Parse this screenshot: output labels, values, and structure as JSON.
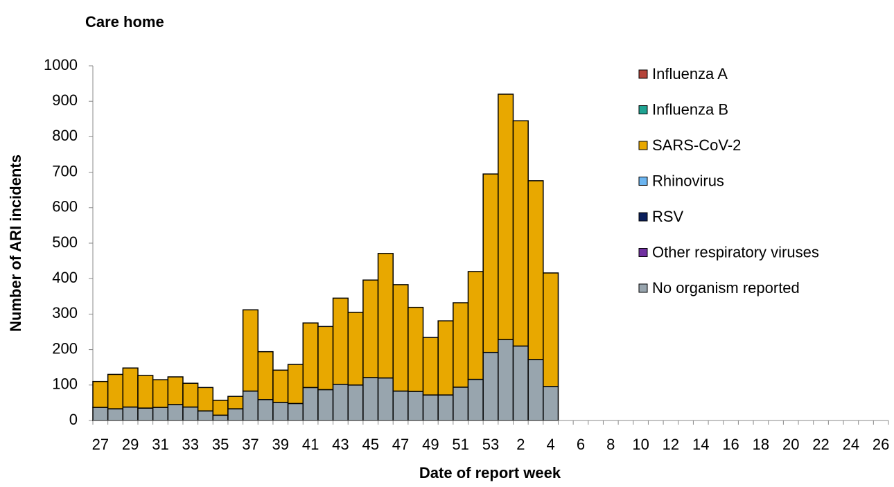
{
  "chart_data": {
    "type": "stacked-bar",
    "title": "Care home",
    "x_label": "Date of report week",
    "y_label": "Number of ARI incidents",
    "categories": [
      "27",
      null,
      "29",
      null,
      "31",
      null,
      "33",
      null,
      "35",
      null,
      "37",
      null,
      "39",
      null,
      "41",
      null,
      "43",
      null,
      "45",
      null,
      "47",
      null,
      "49",
      null,
      "51",
      null,
      "53",
      null,
      "2",
      null,
      "4",
      null,
      "6",
      null,
      "8",
      null,
      "10",
      null,
      "12",
      null,
      "14",
      null,
      "16",
      null,
      "18",
      null,
      "20",
      null,
      "22",
      null,
      "24",
      null,
      "26"
    ],
    "ylim": [
      0,
      1000
    ],
    "yticks": [
      0,
      100,
      200,
      300,
      400,
      500,
      600,
      700,
      800,
      900,
      1000
    ],
    "legend": "right",
    "series": [
      {
        "name": "Influenza A",
        "color": "#b5443a",
        "values": [
          0,
          0,
          0,
          0,
          0,
          0,
          0,
          0,
          0,
          0,
          0,
          0,
          0,
          0,
          0,
          0,
          0,
          0,
          0,
          0,
          0,
          0,
          0,
          0,
          0,
          0,
          0,
          0,
          0,
          0,
          0,
          null,
          null,
          null,
          null,
          null,
          null,
          null,
          null,
          null,
          null,
          null,
          null,
          null,
          null,
          null,
          null,
          null,
          null,
          null,
          null,
          null,
          null
        ]
      },
      {
        "name": "Influenza B",
        "color": "#1fa392",
        "values": [
          0,
          0,
          0,
          0,
          0,
          0,
          0,
          0,
          0,
          0,
          0,
          0,
          0,
          0,
          0,
          0,
          0,
          0,
          0,
          0,
          0,
          0,
          0,
          0,
          0,
          0,
          0,
          0,
          0,
          0,
          0,
          null,
          null,
          null,
          null,
          null,
          null,
          null,
          null,
          null,
          null,
          null,
          null,
          null,
          null,
          null,
          null,
          null,
          null,
          null,
          null,
          null,
          null
        ]
      },
      {
        "name": "SARS-CoV-2",
        "color": "#e8a800",
        "values": [
          73,
          97,
          110,
          92,
          78,
          78,
          67,
          66,
          42,
          35,
          229,
          135,
          91,
          110,
          182,
          178,
          243,
          205,
          275,
          351,
          300,
          237,
          162,
          209,
          238,
          304,
          503,
          692,
          635,
          504,
          320,
          null,
          null,
          null,
          null,
          null,
          null,
          null,
          null,
          null,
          null,
          null,
          null,
          null,
          null,
          null,
          null,
          null,
          null,
          null,
          null,
          null,
          null
        ]
      },
      {
        "name": "Rhinovirus",
        "color": "#6cb5f0",
        "values": [
          0,
          0,
          0,
          0,
          0,
          0,
          0,
          0,
          0,
          0,
          0,
          0,
          0,
          0,
          0,
          0,
          0,
          0,
          0,
          0,
          0,
          0,
          0,
          0,
          0,
          0,
          0,
          0,
          0,
          0,
          0,
          null,
          null,
          null,
          null,
          null,
          null,
          null,
          null,
          null,
          null,
          null,
          null,
          null,
          null,
          null,
          null,
          null,
          null,
          null,
          null,
          null,
          null
        ]
      },
      {
        "name": "RSV",
        "color": "#0a1f5c",
        "values": [
          0,
          0,
          0,
          0,
          0,
          0,
          0,
          0,
          0,
          0,
          0,
          0,
          0,
          0,
          0,
          0,
          0,
          0,
          0,
          0,
          0,
          0,
          0,
          0,
          0,
          0,
          0,
          0,
          0,
          0,
          0,
          null,
          null,
          null,
          null,
          null,
          null,
          null,
          null,
          null,
          null,
          null,
          null,
          null,
          null,
          null,
          null,
          null,
          null,
          null,
          null,
          null,
          null
        ]
      },
      {
        "name": "Other respiratory viruses",
        "color": "#7030a0",
        "values": [
          0,
          0,
          0,
          0,
          0,
          0,
          0,
          0,
          0,
          0,
          0,
          0,
          0,
          0,
          0,
          0,
          0,
          0,
          0,
          0,
          0,
          0,
          0,
          0,
          0,
          0,
          0,
          0,
          0,
          0,
          0,
          null,
          null,
          null,
          null,
          null,
          null,
          null,
          null,
          null,
          null,
          null,
          null,
          null,
          null,
          null,
          null,
          null,
          null,
          null,
          null,
          null,
          null
        ]
      },
      {
        "name": "No organism reported",
        "color": "#98a5ae",
        "values": [
          37,
          33,
          38,
          35,
          37,
          45,
          38,
          27,
          15,
          33,
          83,
          59,
          51,
          48,
          93,
          87,
          102,
          100,
          121,
          120,
          83,
          82,
          72,
          72,
          94,
          116,
          192,
          228,
          210,
          172,
          96,
          null,
          null,
          null,
          null,
          null,
          null,
          null,
          null,
          null,
          null,
          null,
          null,
          null,
          null,
          null,
          null,
          null,
          null,
          null,
          null,
          null,
          null
        ]
      }
    ]
  }
}
